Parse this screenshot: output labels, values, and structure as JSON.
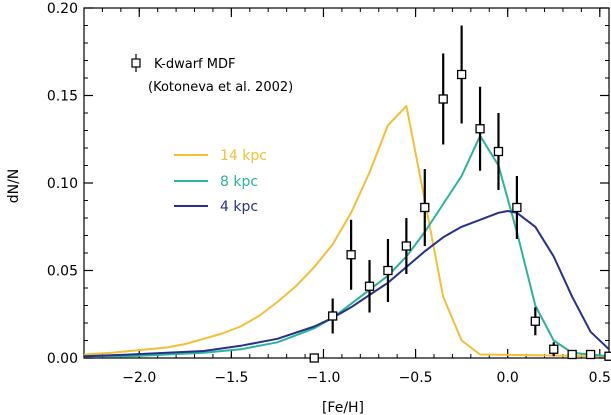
{
  "chart_data": {
    "type": "line",
    "xlabel": "[Fe/H]",
    "ylabel": "dN/N",
    "xlim": [
      -2.3,
      0.55
    ],
    "ylim": [
      0.0,
      0.2
    ],
    "x_ticks": [
      -2.0,
      -1.5,
      -1.0,
      -0.5,
      0.0,
      0.5
    ],
    "x_tick_labels": [
      "−2.0",
      "−1.5",
      "−1.0",
      "−0.5",
      "0.0",
      "0.5"
    ],
    "y_ticks": [
      0.0,
      0.05,
      0.1,
      0.15,
      0.2
    ],
    "y_tick_labels": [
      "0.00",
      "0.05",
      "0.10",
      "0.15",
      "0.20"
    ],
    "grid": false,
    "series": [
      {
        "name": "14 kpc",
        "color": "#f2c037",
        "x": [
          -2.3,
          -2.15,
          -2.05,
          -1.95,
          -1.85,
          -1.75,
          -1.65,
          -1.55,
          -1.45,
          -1.35,
          -1.25,
          -1.15,
          -1.05,
          -0.95,
          -0.85,
          -0.75,
          -0.65,
          -0.55,
          -0.45,
          -0.35,
          -0.25,
          -0.15,
          0.55
        ],
        "y": [
          0.002,
          0.003,
          0.004,
          0.005,
          0.006,
          0.008,
          0.011,
          0.014,
          0.018,
          0.024,
          0.032,
          0.041,
          0.052,
          0.065,
          0.083,
          0.106,
          0.133,
          0.144,
          0.09,
          0.035,
          0.01,
          0.002,
          0.001
        ]
      },
      {
        "name": "8 kpc",
        "color": "#2bb39c",
        "x": [
          -2.3,
          -2.05,
          -1.85,
          -1.65,
          -1.45,
          -1.25,
          -1.05,
          -0.95,
          -0.85,
          -0.75,
          -0.65,
          -0.55,
          -0.45,
          -0.35,
          -0.25,
          -0.15,
          -0.05,
          0.05,
          0.15,
          0.25,
          0.35,
          0.55
        ],
        "y": [
          0.001,
          0.001,
          0.002,
          0.003,
          0.005,
          0.009,
          0.017,
          0.023,
          0.031,
          0.039,
          0.047,
          0.058,
          0.072,
          0.088,
          0.104,
          0.127,
          0.11,
          0.072,
          0.03,
          0.01,
          0.003,
          0.001
        ]
      },
      {
        "name": "4 kpc",
        "color": "#26318a",
        "x": [
          -2.3,
          -2.05,
          -1.85,
          -1.65,
          -1.45,
          -1.25,
          -1.05,
          -0.95,
          -0.85,
          -0.75,
          -0.65,
          -0.55,
          -0.45,
          -0.35,
          -0.25,
          -0.15,
          -0.05,
          0.0,
          0.05,
          0.15,
          0.25,
          0.35,
          0.45,
          0.55
        ],
        "y": [
          0.001,
          0.002,
          0.003,
          0.004,
          0.007,
          0.011,
          0.018,
          0.023,
          0.029,
          0.036,
          0.043,
          0.052,
          0.061,
          0.069,
          0.075,
          0.079,
          0.083,
          0.084,
          0.083,
          0.075,
          0.058,
          0.035,
          0.015,
          0.005
        ]
      }
    ],
    "observed": {
      "name": "K-dwarf MDF",
      "x": [
        -1.05,
        -0.95,
        -0.85,
        -0.75,
        -0.65,
        -0.55,
        -0.45,
        -0.35,
        -0.25,
        -0.15,
        -0.05,
        0.05,
        0.15,
        0.25,
        0.35,
        0.45,
        0.55
      ],
      "y": [
        0.0,
        0.024,
        0.059,
        0.041,
        0.05,
        0.064,
        0.086,
        0.148,
        0.162,
        0.131,
        0.118,
        0.086,
        0.021,
        0.005,
        0.002,
        0.002,
        0.001
      ],
      "err": [
        0.0,
        0.01,
        0.02,
        0.015,
        0.018,
        0.016,
        0.022,
        0.026,
        0.028,
        0.024,
        0.022,
        0.018,
        0.008,
        0.004,
        0.0,
        0.0,
        0.0
      ]
    },
    "legend": {
      "placement": "top-left",
      "observed_label": "K-dwarf MDF",
      "observed_ref": "(Kotoneva et al. 2002)"
    }
  }
}
